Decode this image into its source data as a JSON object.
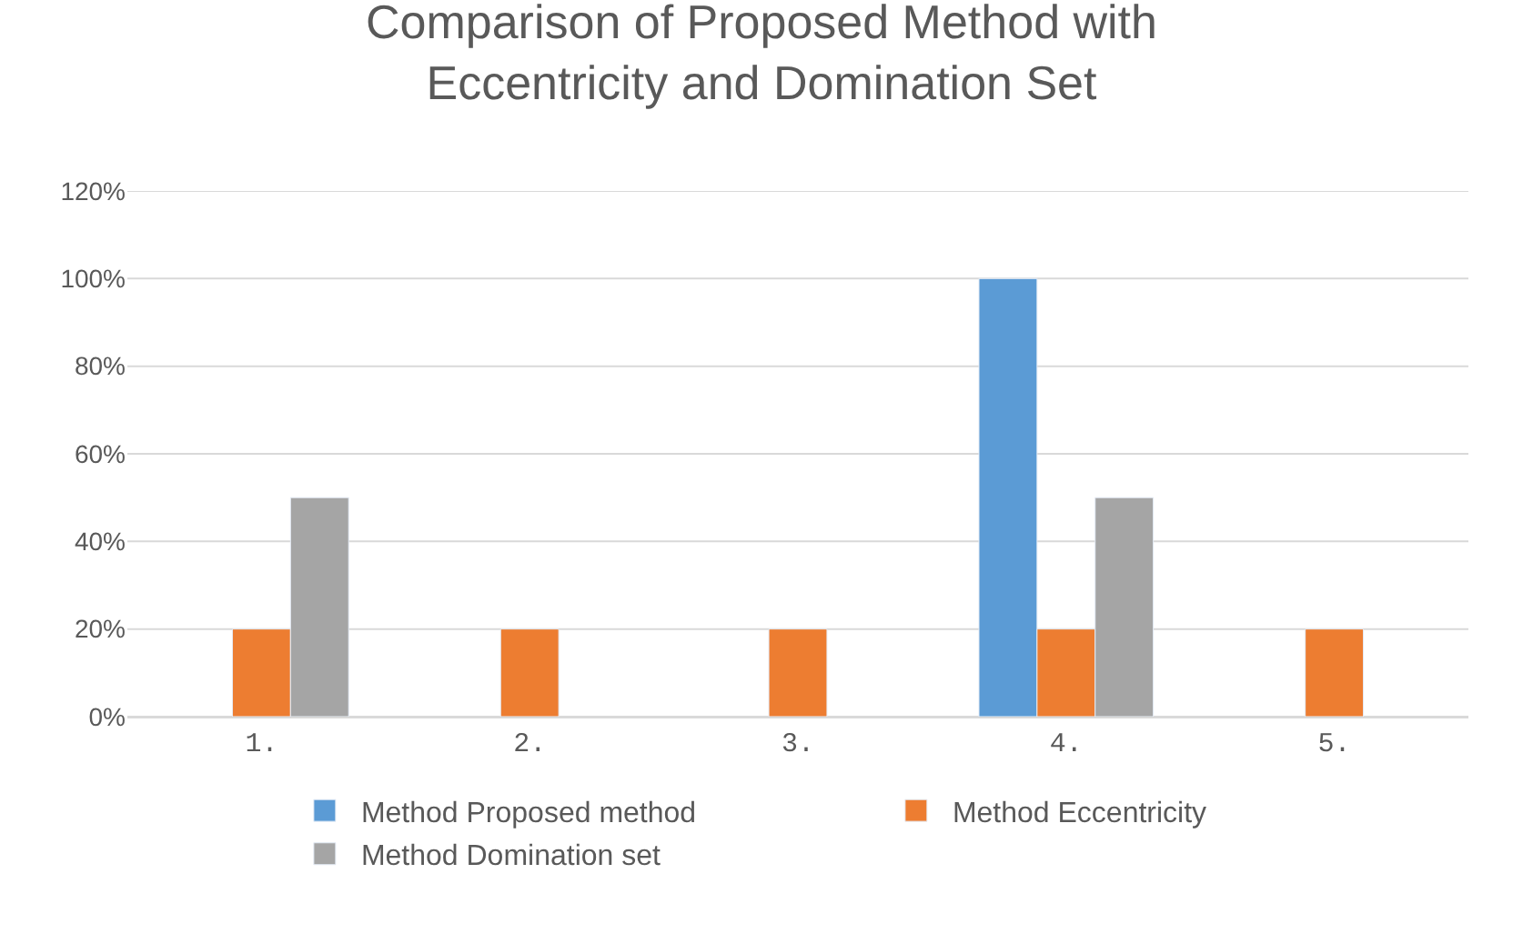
{
  "chart_data": {
    "type": "bar",
    "title": "Comparison of Proposed Method with Eccentricity and Domination Set",
    "categories": [
      "1.",
      "2.",
      "3.",
      "4.",
      "5."
    ],
    "series": [
      {
        "name": "Method Proposed method",
        "color": "#5b9bd5",
        "values": [
          null,
          null,
          null,
          100,
          null
        ]
      },
      {
        "name": "Method Eccentricity",
        "color": "#ed7d31",
        "values": [
          20,
          20,
          20,
          20,
          20
        ]
      },
      {
        "name": "Method Domination set",
        "color": "#a5a5a5",
        "values": [
          50,
          null,
          null,
          50,
          null
        ]
      }
    ],
    "ylim": [
      0,
      120
    ],
    "yticks": [
      {
        "value": 0,
        "label": "0%"
      },
      {
        "value": 20,
        "label": "20%"
      },
      {
        "value": 40,
        "label": "40%"
      },
      {
        "value": 60,
        "label": "60%"
      },
      {
        "value": 80,
        "label": "80%"
      },
      {
        "value": 100,
        "label": "100%"
      },
      {
        "value": 120,
        "label": "120%"
      }
    ],
    "grid": "y",
    "legend": "bottom"
  }
}
